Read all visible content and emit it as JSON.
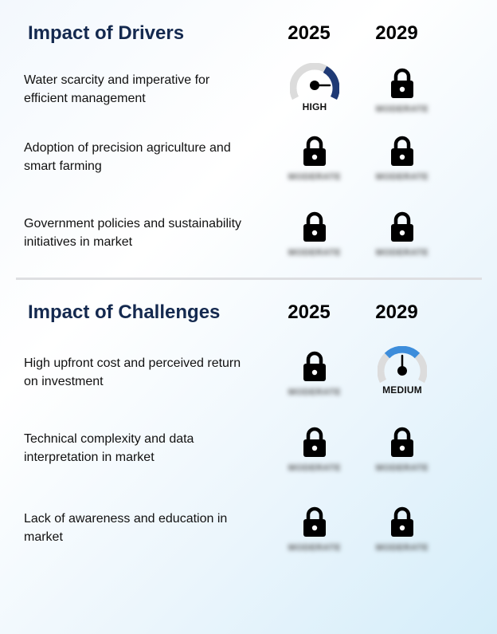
{
  "drivers": {
    "title": "Impact of Drivers",
    "year1": "2025",
    "year2": "2029",
    "rows": [
      {
        "label": "Water scarcity and imperative for efficient management",
        "c1": {
          "type": "gauge",
          "level": "HIGH"
        },
        "c2": {
          "type": "locked",
          "hidden_text": "MODERATE"
        }
      },
      {
        "label": "Adoption of precision agriculture and smart farming",
        "c1": {
          "type": "locked",
          "hidden_text": "MODERATE"
        },
        "c2": {
          "type": "locked",
          "hidden_text": "MODERATE"
        }
      },
      {
        "label": "Government policies and sustainability initiatives in market",
        "c1": {
          "type": "locked",
          "hidden_text": "MODERATE"
        },
        "c2": {
          "type": "locked",
          "hidden_text": "MODERATE"
        }
      }
    ]
  },
  "challenges": {
    "title": "Impact of Challenges",
    "year1": "2025",
    "year2": "2029",
    "rows": [
      {
        "label": "High upfront cost and perceived return on investment",
        "c1": {
          "type": "locked",
          "hidden_text": "MODERATE"
        },
        "c2": {
          "type": "gauge",
          "level": "MEDIUM"
        }
      },
      {
        "label": "Technical complexity and data interpretation in market",
        "c1": {
          "type": "locked",
          "hidden_text": "MODERATE"
        },
        "c2": {
          "type": "locked",
          "hidden_text": "MODERATE"
        }
      },
      {
        "label": "Lack of awareness and education in market",
        "c1": {
          "type": "locked",
          "hidden_text": "MODERATE"
        },
        "c2": {
          "type": "locked",
          "hidden_text": "MODERATE"
        }
      }
    ]
  },
  "icons": {
    "lock": "lock-icon",
    "gauge": "gauge-icon"
  },
  "colors": {
    "title": "#14294f",
    "gauge_high": "#1f3a75",
    "gauge_medium": "#3d8ddb",
    "gauge_track": "#dcdcdc"
  }
}
